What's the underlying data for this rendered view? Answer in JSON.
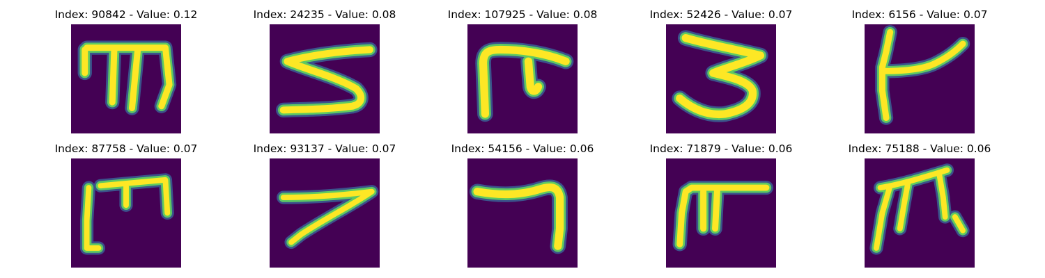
{
  "colors": {
    "background": "#440154",
    "stroke_core": "#fde725",
    "stroke_mid": "#5ec962",
    "stroke_edge": "#21918c",
    "stroke_outer": "#3b528b"
  },
  "panels": [
    {
      "title": "Index: 90842 - Value: 0.12",
      "glyph": "m-shape-glyph"
    },
    {
      "title": "Index: 24235 - Value: 0.08",
      "glyph": "z-shape-glyph"
    },
    {
      "title": "Index: 107925 - Value: 0.08",
      "glyph": "pi-shape-glyph"
    },
    {
      "title": "Index: 52426 - Value: 0.07",
      "glyph": "three-shape-glyph"
    },
    {
      "title": "Index: 6156 - Value: 0.07",
      "glyph": "k-shape-glyph"
    },
    {
      "title": "Index: 87758 - Value: 0.07",
      "glyph": "bracket-m-shape-glyph"
    },
    {
      "title": "Index: 93137 - Value: 0.07",
      "glyph": "seven-shape-glyph"
    },
    {
      "title": "Index: 54156 - Value: 0.06",
      "glyph": "hook-shape-glyph"
    },
    {
      "title": "Index: 71879 - Value: 0.06",
      "glyph": "pi-shape-glyph-2"
    },
    {
      "title": "Index: 75188 - Value: 0.06",
      "glyph": "pi-shape-glyph-3"
    }
  ]
}
